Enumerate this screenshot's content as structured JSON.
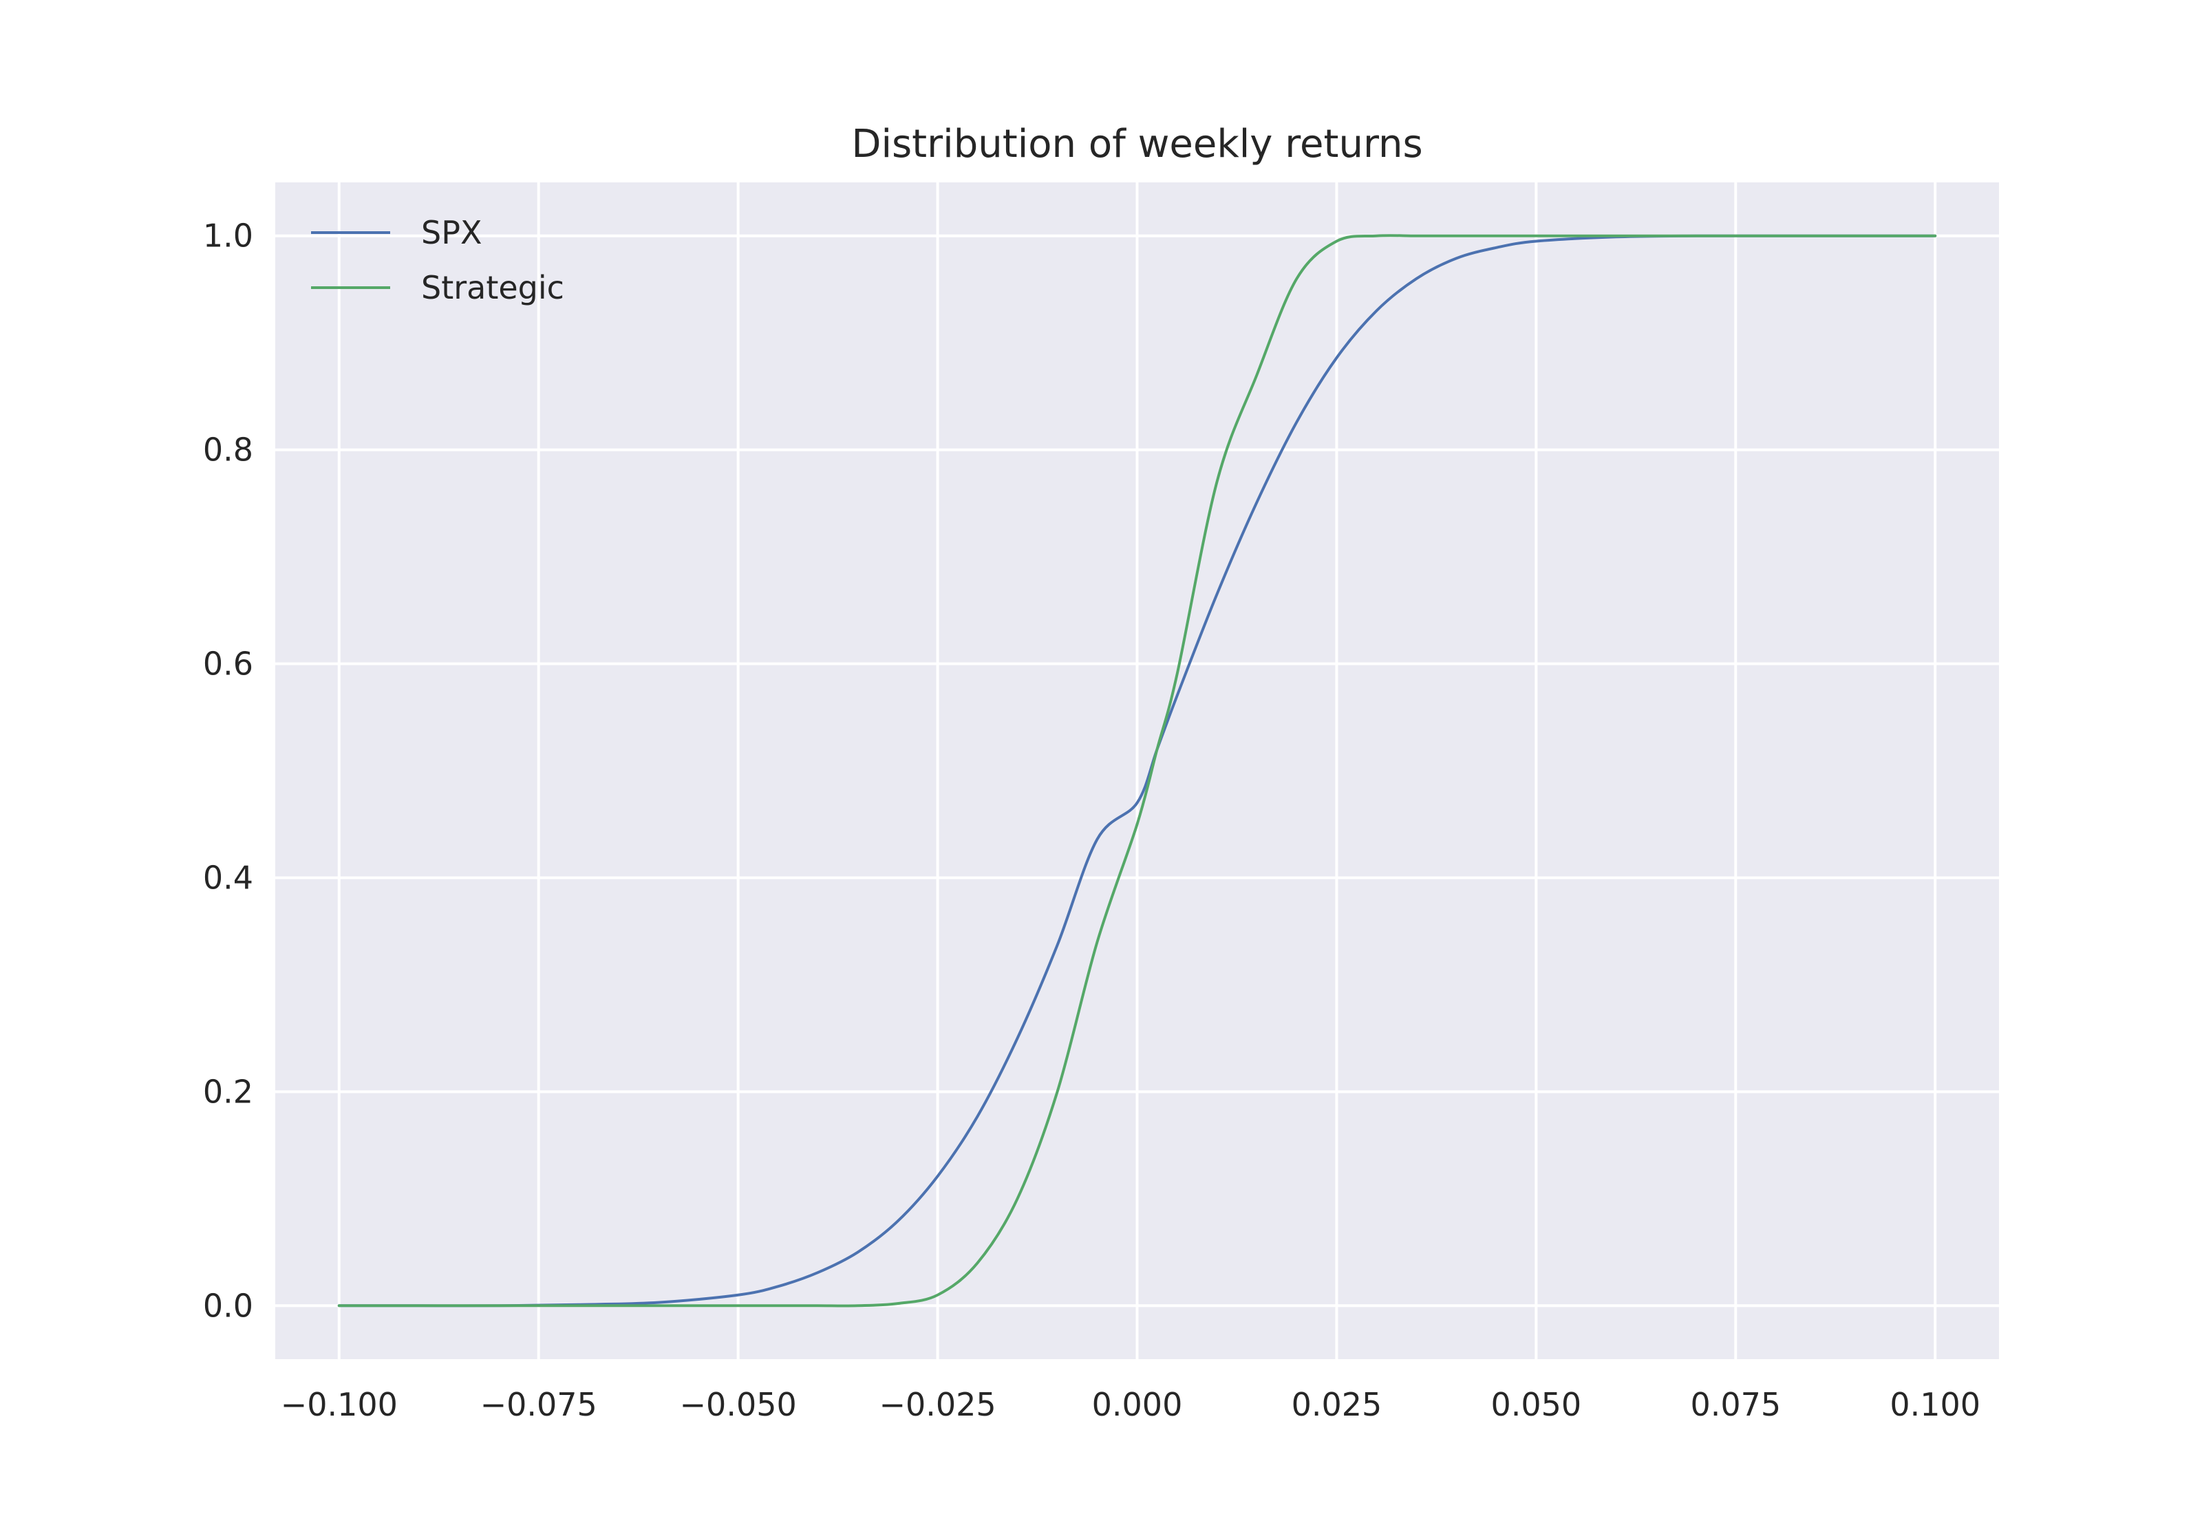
{
  "chart_data": {
    "type": "line",
    "title": "Distribution of weekly returns",
    "xlabel": "",
    "ylabel": "",
    "xlim": [
      -0.108,
      0.108
    ],
    "ylim": [
      -0.05,
      1.05
    ],
    "x_ticks": [
      -0.1,
      -0.075,
      -0.05,
      -0.025,
      0.0,
      0.025,
      0.05,
      0.075,
      0.1
    ],
    "x_tick_labels": [
      "−0.100",
      "−0.075",
      "−0.050",
      "−0.025",
      "0.000",
      "0.025",
      "0.050",
      "0.075",
      "0.100"
    ],
    "y_ticks": [
      0.0,
      0.2,
      0.4,
      0.6,
      0.8,
      1.0
    ],
    "y_tick_labels": [
      "0.0",
      "0.2",
      "0.4",
      "0.6",
      "0.8",
      "1.0"
    ],
    "grid": true,
    "background_color": "#eaeaf2",
    "legend_position": "upper-left",
    "x": [
      -0.1,
      -0.09,
      -0.08,
      -0.07,
      -0.06,
      -0.05,
      -0.045,
      -0.04,
      -0.035,
      -0.03,
      -0.025,
      -0.02,
      -0.015,
      -0.01,
      -0.005,
      0.0,
      0.0025,
      0.005,
      0.01,
      0.015,
      0.02,
      0.025,
      0.03,
      0.035,
      0.04,
      0.045,
      0.05,
      0.06,
      0.07,
      0.08,
      0.09,
      0.1
    ],
    "series": [
      {
        "name": "SPX",
        "color": "#4c72b0",
        "values": [
          0.0,
          0.0,
          0.0,
          0.001,
          0.003,
          0.01,
          0.018,
          0.031,
          0.05,
          0.079,
          0.121,
          0.177,
          0.25,
          0.337,
          0.436,
          0.47,
          0.52,
          0.57,
          0.665,
          0.751,
          0.826,
          0.886,
          0.93,
          0.96,
          0.979,
          0.989,
          0.995,
          0.999,
          1.0,
          1.0,
          1.0,
          1.0
        ]
      },
      {
        "name": "Strategic",
        "color": "#55a868",
        "values": [
          0.0,
          0.0,
          0.0,
          0.0,
          0.0,
          0.0,
          0.0,
          0.0,
          0.0,
          0.002,
          0.01,
          0.04,
          0.1,
          0.2,
          0.34,
          0.45,
          0.52,
          0.59,
          0.77,
          0.87,
          0.96,
          0.995,
          1.0,
          1.0,
          1.0,
          1.0,
          1.0,
          1.0,
          1.0,
          1.0,
          1.0,
          1.0
        ]
      }
    ]
  }
}
